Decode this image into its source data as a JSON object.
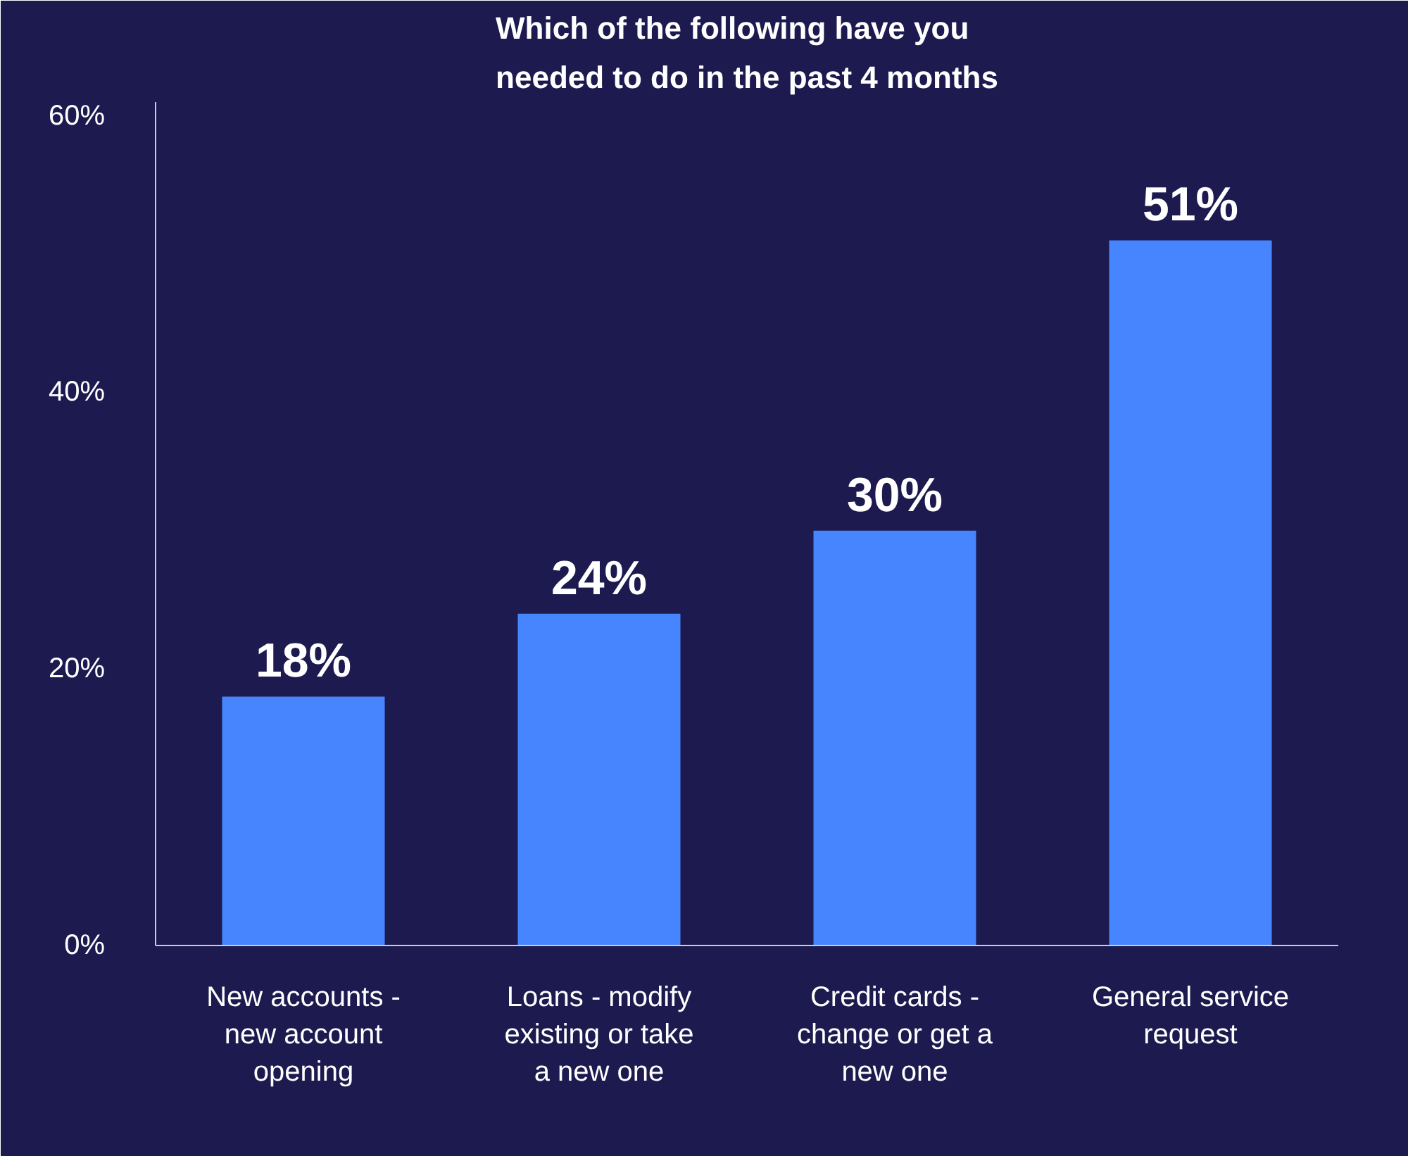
{
  "chart_data": {
    "type": "bar",
    "title": "Which of the following have you\nneeded to do in the past 4 months",
    "categories": [
      "New accounts - new account opening",
      "Loans - modify existing or take a new one",
      "Credit cards - change or get a new one",
      "General service request"
    ],
    "values": [
      18,
      24,
      30,
      51
    ],
    "color": "#4785ff",
    "ylim": [
      0,
      61
    ],
    "yticks": [
      {
        "value": 0,
        "label": "0%"
      },
      {
        "value": 20,
        "label": "20%"
      },
      {
        "value": 40,
        "label": "40%"
      },
      {
        "value": 60,
        "label": "60%"
      }
    ],
    "grid": false,
    "data_labels": true,
    "value_labels": [
      "18%",
      "24%",
      "30%",
      "51%"
    ]
  }
}
